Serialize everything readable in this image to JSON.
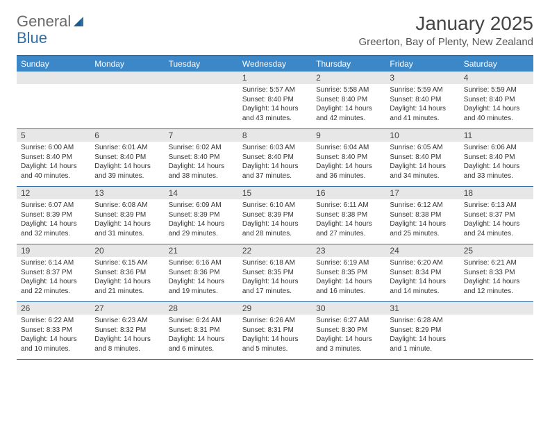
{
  "logo": {
    "text1": "General",
    "text2": "Blue"
  },
  "title": "January 2025",
  "location": "Greerton, Bay of Plenty, New Zealand",
  "colors": {
    "header_band": "#3b87c8",
    "rule": "#2f6fa8",
    "daynum_bg": "#e7e7e7",
    "text": "#333333"
  },
  "days_of_week": [
    "Sunday",
    "Monday",
    "Tuesday",
    "Wednesday",
    "Thursday",
    "Friday",
    "Saturday"
  ],
  "weeks": [
    [
      null,
      null,
      null,
      {
        "n": "1",
        "sr": "Sunrise: 5:57 AM",
        "ss": "Sunset: 8:40 PM",
        "dl": "Daylight: 14 hours and 43 minutes."
      },
      {
        "n": "2",
        "sr": "Sunrise: 5:58 AM",
        "ss": "Sunset: 8:40 PM",
        "dl": "Daylight: 14 hours and 42 minutes."
      },
      {
        "n": "3",
        "sr": "Sunrise: 5:59 AM",
        "ss": "Sunset: 8:40 PM",
        "dl": "Daylight: 14 hours and 41 minutes."
      },
      {
        "n": "4",
        "sr": "Sunrise: 5:59 AM",
        "ss": "Sunset: 8:40 PM",
        "dl": "Daylight: 14 hours and 40 minutes."
      }
    ],
    [
      {
        "n": "5",
        "sr": "Sunrise: 6:00 AM",
        "ss": "Sunset: 8:40 PM",
        "dl": "Daylight: 14 hours and 40 minutes."
      },
      {
        "n": "6",
        "sr": "Sunrise: 6:01 AM",
        "ss": "Sunset: 8:40 PM",
        "dl": "Daylight: 14 hours and 39 minutes."
      },
      {
        "n": "7",
        "sr": "Sunrise: 6:02 AM",
        "ss": "Sunset: 8:40 PM",
        "dl": "Daylight: 14 hours and 38 minutes."
      },
      {
        "n": "8",
        "sr": "Sunrise: 6:03 AM",
        "ss": "Sunset: 8:40 PM",
        "dl": "Daylight: 14 hours and 37 minutes."
      },
      {
        "n": "9",
        "sr": "Sunrise: 6:04 AM",
        "ss": "Sunset: 8:40 PM",
        "dl": "Daylight: 14 hours and 36 minutes."
      },
      {
        "n": "10",
        "sr": "Sunrise: 6:05 AM",
        "ss": "Sunset: 8:40 PM",
        "dl": "Daylight: 14 hours and 34 minutes."
      },
      {
        "n": "11",
        "sr": "Sunrise: 6:06 AM",
        "ss": "Sunset: 8:40 PM",
        "dl": "Daylight: 14 hours and 33 minutes."
      }
    ],
    [
      {
        "n": "12",
        "sr": "Sunrise: 6:07 AM",
        "ss": "Sunset: 8:39 PM",
        "dl": "Daylight: 14 hours and 32 minutes."
      },
      {
        "n": "13",
        "sr": "Sunrise: 6:08 AM",
        "ss": "Sunset: 8:39 PM",
        "dl": "Daylight: 14 hours and 31 minutes."
      },
      {
        "n": "14",
        "sr": "Sunrise: 6:09 AM",
        "ss": "Sunset: 8:39 PM",
        "dl": "Daylight: 14 hours and 29 minutes."
      },
      {
        "n": "15",
        "sr": "Sunrise: 6:10 AM",
        "ss": "Sunset: 8:39 PM",
        "dl": "Daylight: 14 hours and 28 minutes."
      },
      {
        "n": "16",
        "sr": "Sunrise: 6:11 AM",
        "ss": "Sunset: 8:38 PM",
        "dl": "Daylight: 14 hours and 27 minutes."
      },
      {
        "n": "17",
        "sr": "Sunrise: 6:12 AM",
        "ss": "Sunset: 8:38 PM",
        "dl": "Daylight: 14 hours and 25 minutes."
      },
      {
        "n": "18",
        "sr": "Sunrise: 6:13 AM",
        "ss": "Sunset: 8:37 PM",
        "dl": "Daylight: 14 hours and 24 minutes."
      }
    ],
    [
      {
        "n": "19",
        "sr": "Sunrise: 6:14 AM",
        "ss": "Sunset: 8:37 PM",
        "dl": "Daylight: 14 hours and 22 minutes."
      },
      {
        "n": "20",
        "sr": "Sunrise: 6:15 AM",
        "ss": "Sunset: 8:36 PM",
        "dl": "Daylight: 14 hours and 21 minutes."
      },
      {
        "n": "21",
        "sr": "Sunrise: 6:16 AM",
        "ss": "Sunset: 8:36 PM",
        "dl": "Daylight: 14 hours and 19 minutes."
      },
      {
        "n": "22",
        "sr": "Sunrise: 6:18 AM",
        "ss": "Sunset: 8:35 PM",
        "dl": "Daylight: 14 hours and 17 minutes."
      },
      {
        "n": "23",
        "sr": "Sunrise: 6:19 AM",
        "ss": "Sunset: 8:35 PM",
        "dl": "Daylight: 14 hours and 16 minutes."
      },
      {
        "n": "24",
        "sr": "Sunrise: 6:20 AM",
        "ss": "Sunset: 8:34 PM",
        "dl": "Daylight: 14 hours and 14 minutes."
      },
      {
        "n": "25",
        "sr": "Sunrise: 6:21 AM",
        "ss": "Sunset: 8:33 PM",
        "dl": "Daylight: 14 hours and 12 minutes."
      }
    ],
    [
      {
        "n": "26",
        "sr": "Sunrise: 6:22 AM",
        "ss": "Sunset: 8:33 PM",
        "dl": "Daylight: 14 hours and 10 minutes."
      },
      {
        "n": "27",
        "sr": "Sunrise: 6:23 AM",
        "ss": "Sunset: 8:32 PM",
        "dl": "Daylight: 14 hours and 8 minutes."
      },
      {
        "n": "28",
        "sr": "Sunrise: 6:24 AM",
        "ss": "Sunset: 8:31 PM",
        "dl": "Daylight: 14 hours and 6 minutes."
      },
      {
        "n": "29",
        "sr": "Sunrise: 6:26 AM",
        "ss": "Sunset: 8:31 PM",
        "dl": "Daylight: 14 hours and 5 minutes."
      },
      {
        "n": "30",
        "sr": "Sunrise: 6:27 AM",
        "ss": "Sunset: 8:30 PM",
        "dl": "Daylight: 14 hours and 3 minutes."
      },
      {
        "n": "31",
        "sr": "Sunrise: 6:28 AM",
        "ss": "Sunset: 8:29 PM",
        "dl": "Daylight: 14 hours and 1 minute."
      },
      null
    ]
  ]
}
